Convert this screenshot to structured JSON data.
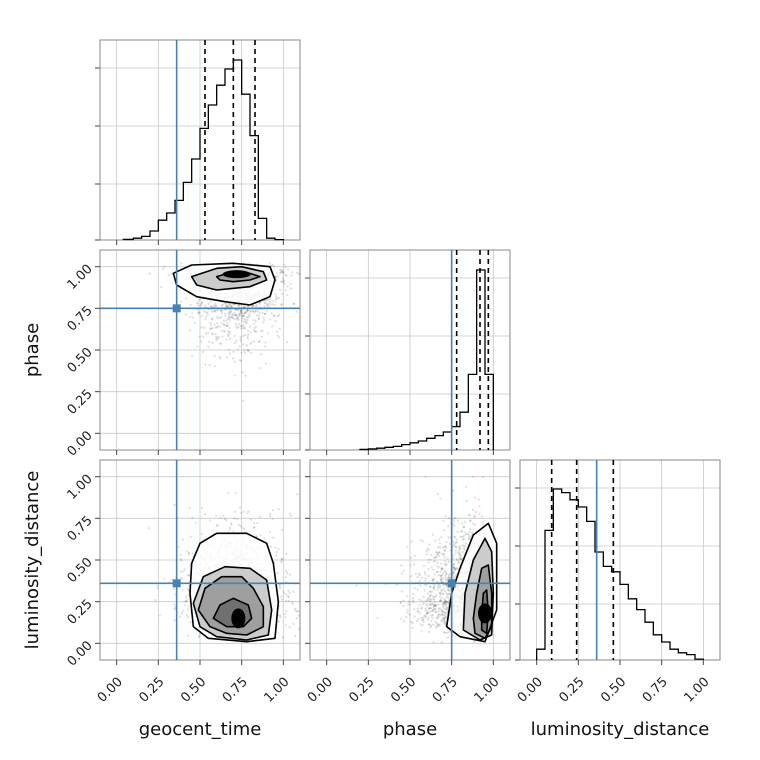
{
  "chart_data": {
    "type": "corner",
    "parameters": [
      "geocent_time",
      "phase",
      "luminosity_distance"
    ],
    "tick_values": [
      0.0,
      0.25,
      0.5,
      0.75,
      1.0
    ],
    "tick_labels": [
      "0.00",
      "0.25",
      "0.50",
      "0.75",
      "1.00"
    ],
    "axis_range": [
      -0.1,
      1.1
    ],
    "truths": {
      "geocent_time": 0.36,
      "phase": 0.75,
      "luminosity_distance": 0.36
    },
    "truth_color": "#4682b4",
    "histograms": {
      "geocent_time": {
        "bin_edges": [
          0.04,
          0.1,
          0.15,
          0.2,
          0.25,
          0.3,
          0.35,
          0.4,
          0.45,
          0.5,
          0.55,
          0.6,
          0.65,
          0.7,
          0.75,
          0.8,
          0.85,
          0.9,
          0.95,
          1.0
        ],
        "counts": [
          0.003,
          0.01,
          0.02,
          0.05,
          0.11,
          0.15,
          0.22,
          0.32,
          0.45,
          0.62,
          0.75,
          0.86,
          0.95,
          1.0,
          0.81,
          0.58,
          0.12,
          0.01,
          0.002
        ],
        "quantiles": [
          0.53,
          0.7,
          0.83
        ]
      },
      "phase": {
        "bin_edges": [
          0.2,
          0.25,
          0.3,
          0.35,
          0.4,
          0.45,
          0.5,
          0.55,
          0.6,
          0.65,
          0.7,
          0.75,
          0.8,
          0.85,
          0.9,
          0.95,
          1.0
        ],
        "counts": [
          0.003,
          0.006,
          0.01,
          0.015,
          0.02,
          0.03,
          0.04,
          0.05,
          0.065,
          0.08,
          0.1,
          0.13,
          0.21,
          0.42,
          1.0,
          0.42
        ],
        "quantiles": [
          0.78,
          0.92,
          0.97
        ]
      },
      "luminosity_distance": {
        "bin_edges": [
          0.0,
          0.05,
          0.1,
          0.15,
          0.2,
          0.25,
          0.3,
          0.35,
          0.4,
          0.45,
          0.5,
          0.55,
          0.6,
          0.65,
          0.7,
          0.75,
          0.8,
          0.85,
          0.9,
          0.95,
          1.0
        ],
        "counts": [
          0.06,
          0.72,
          0.95,
          0.93,
          0.89,
          0.85,
          0.77,
          0.6,
          0.52,
          0.49,
          0.42,
          0.34,
          0.28,
          0.21,
          0.14,
          0.1,
          0.06,
          0.04,
          0.03,
          0.005
        ],
        "quantiles": [
          0.09,
          0.24,
          0.46
        ]
      }
    },
    "contours": {
      "phase_vs_geocent_time": [
        [
          [
            0.6,
            0.94
          ],
          [
            0.7,
            0.97
          ],
          [
            0.8,
            0.96
          ],
          [
            0.86,
            0.94
          ],
          [
            0.8,
            0.92
          ],
          [
            0.7,
            0.91
          ],
          [
            0.62,
            0.92
          ]
        ],
        [
          [
            0.45,
            0.94
          ],
          [
            0.6,
            0.99
          ],
          [
            0.75,
            1.0
          ],
          [
            0.88,
            0.97
          ],
          [
            0.9,
            0.92
          ],
          [
            0.8,
            0.88
          ],
          [
            0.6,
            0.86
          ],
          [
            0.48,
            0.89
          ]
        ],
        [
          [
            0.34,
            0.96
          ],
          [
            0.45,
            1.01
          ],
          [
            0.7,
            1.02
          ],
          [
            0.92,
            1.0
          ],
          [
            0.95,
            0.92
          ],
          [
            0.92,
            0.82
          ],
          [
            0.8,
            0.77
          ],
          [
            0.65,
            0.79
          ],
          [
            0.48,
            0.82
          ],
          [
            0.36,
            0.89
          ]
        ]
      ],
      "luminosity_distance_vs_geocent_time": [
        [
          [
            0.58,
            0.15
          ],
          [
            0.66,
            0.1
          ],
          [
            0.76,
            0.1
          ],
          [
            0.81,
            0.15
          ],
          [
            0.79,
            0.23
          ],
          [
            0.7,
            0.27
          ],
          [
            0.62,
            0.23
          ]
        ],
        [
          [
            0.49,
            0.2
          ],
          [
            0.56,
            0.1
          ],
          [
            0.66,
            0.06
          ],
          [
            0.78,
            0.05
          ],
          [
            0.88,
            0.1
          ],
          [
            0.88,
            0.22
          ],
          [
            0.82,
            0.33
          ],
          [
            0.75,
            0.4
          ],
          [
            0.63,
            0.4
          ],
          [
            0.53,
            0.33
          ]
        ],
        [
          [
            0.46,
            0.24
          ],
          [
            0.5,
            0.1
          ],
          [
            0.6,
            0.04
          ],
          [
            0.78,
            0.02
          ],
          [
            0.91,
            0.05
          ],
          [
            0.93,
            0.2
          ],
          [
            0.9,
            0.38
          ],
          [
            0.8,
            0.45
          ],
          [
            0.65,
            0.46
          ],
          [
            0.52,
            0.4
          ]
        ],
        [
          [
            0.44,
            0.3
          ],
          [
            0.46,
            0.1
          ],
          [
            0.55,
            0.03
          ],
          [
            0.78,
            0.01
          ],
          [
            0.95,
            0.03
          ],
          [
            0.97,
            0.25
          ],
          [
            0.94,
            0.48
          ],
          [
            0.9,
            0.6
          ],
          [
            0.78,
            0.66
          ],
          [
            0.6,
            0.66
          ],
          [
            0.5,
            0.6
          ],
          [
            0.45,
            0.48
          ]
        ]
      ],
      "luminosity_distance_vs_phase": [
        [
          [
            0.93,
            0.08
          ],
          [
            0.96,
            0.06
          ],
          [
            0.97,
            0.18
          ],
          [
            0.96,
            0.32
          ],
          [
            0.94,
            0.3
          ],
          [
            0.93,
            0.18
          ]
        ],
        [
          [
            0.89,
            0.06
          ],
          [
            0.95,
            0.03
          ],
          [
            0.99,
            0.1
          ],
          [
            0.99,
            0.3
          ],
          [
            0.97,
            0.47
          ],
          [
            0.93,
            0.45
          ],
          [
            0.9,
            0.3
          ],
          [
            0.88,
            0.15
          ]
        ],
        [
          [
            0.82,
            0.08
          ],
          [
            0.92,
            0.02
          ],
          [
            0.99,
            0.05
          ],
          [
            1.0,
            0.3
          ],
          [
            0.99,
            0.55
          ],
          [
            0.95,
            0.63
          ],
          [
            0.88,
            0.5
          ],
          [
            0.83,
            0.3
          ]
        ],
        [
          [
            0.72,
            0.1
          ],
          [
            0.8,
            0.04
          ],
          [
            0.95,
            0.01
          ],
          [
            1.02,
            0.2
          ],
          [
            1.02,
            0.6
          ],
          [
            0.97,
            0.72
          ],
          [
            0.88,
            0.65
          ],
          [
            0.8,
            0.45
          ],
          [
            0.75,
            0.3
          ]
        ]
      ]
    },
    "density_peaks": {
      "phase_vs_geocent_time": {
        "x": 0.72,
        "y": 0.955
      },
      "luminosity_distance_vs_geocent_time": {
        "x": 0.73,
        "y": 0.15
      },
      "luminosity_distance_vs_phase": {
        "x": 0.95,
        "y": 0.18
      }
    }
  }
}
